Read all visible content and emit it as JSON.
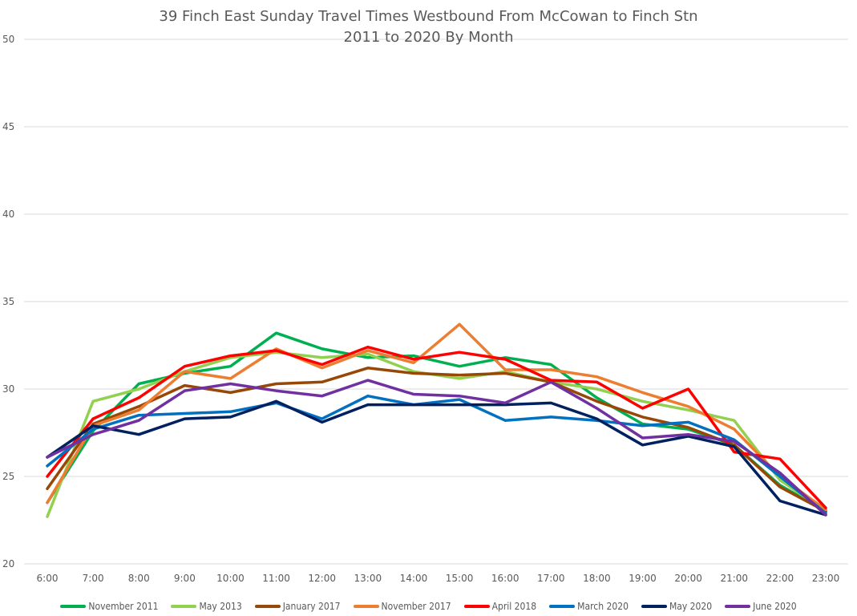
{
  "chart_data": {
    "type": "line",
    "title": "39 Finch East Sunday Travel Times Westbound From McCowan to Finch Stn",
    "subtitle": "2011 to 2020 By Month",
    "xlabel": "",
    "ylabel": "",
    "x": [
      "6:00",
      "7:00",
      "8:00",
      "9:00",
      "10:00",
      "11:00",
      "12:00",
      "13:00",
      "14:00",
      "15:00",
      "16:00",
      "17:00",
      "18:00",
      "19:00",
      "20:00",
      "21:00",
      "22:00",
      "23:00"
    ],
    "ylim": [
      20,
      50
    ],
    "yticks": [
      20,
      25,
      30,
      35,
      40,
      45,
      50
    ],
    "grid": true,
    "legend_position": "bottom",
    "series": [
      {
        "name": "November 2011",
        "color": "#00b050",
        "values": [
          23.5,
          27.6,
          30.3,
          30.9,
          31.3,
          33.2,
          32.3,
          31.8,
          31.9,
          31.3,
          31.8,
          31.4,
          29.5,
          28.0,
          27.7,
          26.8,
          24.5,
          23.0
        ]
      },
      {
        "name": "May 2013",
        "color": "#92d050",
        "values": [
          22.7,
          29.3,
          30.0,
          31.0,
          31.8,
          32.1,
          31.8,
          32.0,
          31.0,
          30.6,
          31.0,
          30.4,
          30.0,
          29.3,
          28.8,
          28.2,
          24.8,
          23.0
        ]
      },
      {
        "name": "January 2017",
        "color": "#974706",
        "values": [
          24.3,
          28.0,
          29.0,
          30.2,
          29.8,
          30.3,
          30.4,
          31.2,
          30.9,
          30.8,
          30.9,
          30.4,
          29.3,
          28.4,
          27.8,
          26.8,
          24.4,
          23.0
        ]
      },
      {
        "name": "November 2017",
        "color": "#ed7d31",
        "values": [
          23.5,
          27.9,
          28.8,
          31.0,
          30.6,
          32.3,
          31.2,
          32.2,
          31.5,
          33.7,
          31.1,
          31.1,
          30.7,
          29.8,
          29.0,
          27.7,
          25.0,
          23.1
        ]
      },
      {
        "name": "April 2018",
        "color": "#ff0000",
        "values": [
          25.0,
          28.3,
          29.5,
          31.3,
          31.9,
          32.2,
          31.4,
          32.4,
          31.7,
          32.1,
          31.7,
          30.5,
          30.4,
          28.9,
          30.0,
          26.4,
          26.0,
          23.2
        ]
      },
      {
        "name": "March 2020",
        "color": "#0070c0",
        "values": [
          25.6,
          27.7,
          28.5,
          28.6,
          28.7,
          29.2,
          28.3,
          29.6,
          29.1,
          29.4,
          28.2,
          28.4,
          28.2,
          27.9,
          28.1,
          27.1,
          25.0,
          22.9
        ]
      },
      {
        "name": "May 2020",
        "color": "#002060",
        "values": [
          26.1,
          27.9,
          27.4,
          28.3,
          28.4,
          29.3,
          28.1,
          29.1,
          29.1,
          29.1,
          29.1,
          29.2,
          28.3,
          26.8,
          27.3,
          26.7,
          23.6,
          22.8
        ]
      },
      {
        "name": "June 2020",
        "color": "#7030a0",
        "values": [
          26.1,
          27.4,
          28.2,
          29.9,
          30.3,
          29.9,
          29.6,
          30.5,
          29.7,
          29.6,
          29.2,
          30.4,
          28.9,
          27.2,
          27.4,
          27.0,
          25.2,
          22.8
        ]
      }
    ]
  }
}
